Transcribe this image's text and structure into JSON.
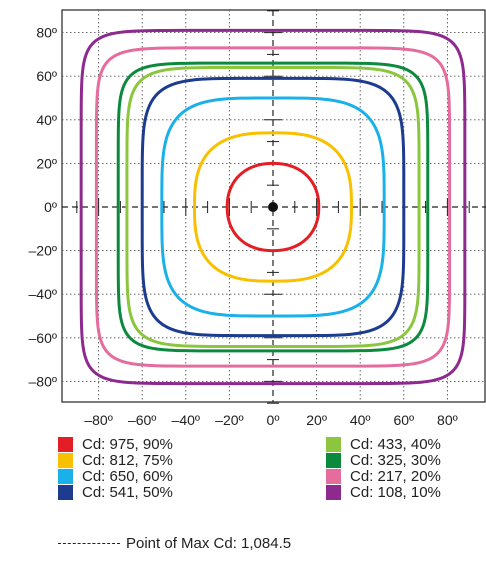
{
  "chart_data": {
    "type": "line",
    "subtype": "isocandela-contour",
    "title": "",
    "xlabel": "",
    "ylabel": "",
    "xlim": [
      -93,
      93
    ],
    "ylim": [
      -93,
      93
    ],
    "x_ticks": [
      -80,
      -60,
      -40,
      -20,
      0,
      20,
      40,
      60,
      80
    ],
    "y_ticks": [
      80,
      60,
      40,
      20,
      0,
      -20,
      -40,
      -60,
      -80
    ],
    "x_tick_labels": [
      "–80º",
      "–60º",
      "–40º",
      "–20º",
      "0º",
      "20º",
      "40º",
      "60º",
      "80º"
    ],
    "y_tick_labels": [
      "80º",
      "60º",
      "40º",
      "20º",
      "0º",
      "–20º",
      "–40º",
      "–60º",
      "–80º"
    ],
    "grid": true,
    "legend_position": "bottom",
    "series": [
      {
        "name": "Cd: 975, 90%",
        "color": "#e31e24",
        "half_width_deg": 21,
        "half_height_deg": 20,
        "squareness": 2.2
      },
      {
        "name": "Cd: 812, 75%",
        "color": "#f7c100",
        "half_width_deg": 36,
        "half_height_deg": 34,
        "squareness": 2.8
      },
      {
        "name": "Cd: 650, 60%",
        "color": "#1ab0e8",
        "half_width_deg": 51,
        "half_height_deg": 50,
        "squareness": 4
      },
      {
        "name": "Cd: 541, 50%",
        "color": "#1d3c8f",
        "half_width_deg": 60,
        "half_height_deg": 59,
        "squareness": 5.5
      },
      {
        "name": "Cd: 433, 40%",
        "color": "#8cc63f",
        "half_width_deg": 67,
        "half_height_deg": 64,
        "squareness": 7
      },
      {
        "name": "Cd: 325, 30%",
        "color": "#0b8a3e",
        "half_width_deg": 71,
        "half_height_deg": 66,
        "squareness": 8
      },
      {
        "name": "Cd: 217, 20%",
        "color": "#e46d9d",
        "half_width_deg": 81,
        "half_height_deg": 73,
        "squareness": 9
      },
      {
        "name": "Cd: 108, 10%",
        "color": "#8e2a8e",
        "half_width_deg": 88,
        "half_height_deg": 81,
        "squareness": 10
      }
    ],
    "max_point": {
      "x": 0,
      "y": 0
    }
  },
  "legend": {
    "items": [
      {
        "label": "Cd: 975, 90%",
        "color": "#e31e24"
      },
      {
        "label": "Cd: 812, 75%",
        "color": "#f7c100"
      },
      {
        "label": "Cd: 650, 60%",
        "color": "#1ab0e8"
      },
      {
        "label": "Cd: 541, 50%",
        "color": "#1d3c8f"
      },
      {
        "label": "Cd: 433, 40%",
        "color": "#8cc63f"
      },
      {
        "label": "Cd: 325, 30%",
        "color": "#0b8a3e"
      },
      {
        "label": "Cd: 217, 20%",
        "color": "#e46d9d"
      },
      {
        "label": "Cd: 108, 10%",
        "color": "#8e2a8e"
      }
    ],
    "max_cd_label": "Point of Max Cd: 1,084.5"
  }
}
